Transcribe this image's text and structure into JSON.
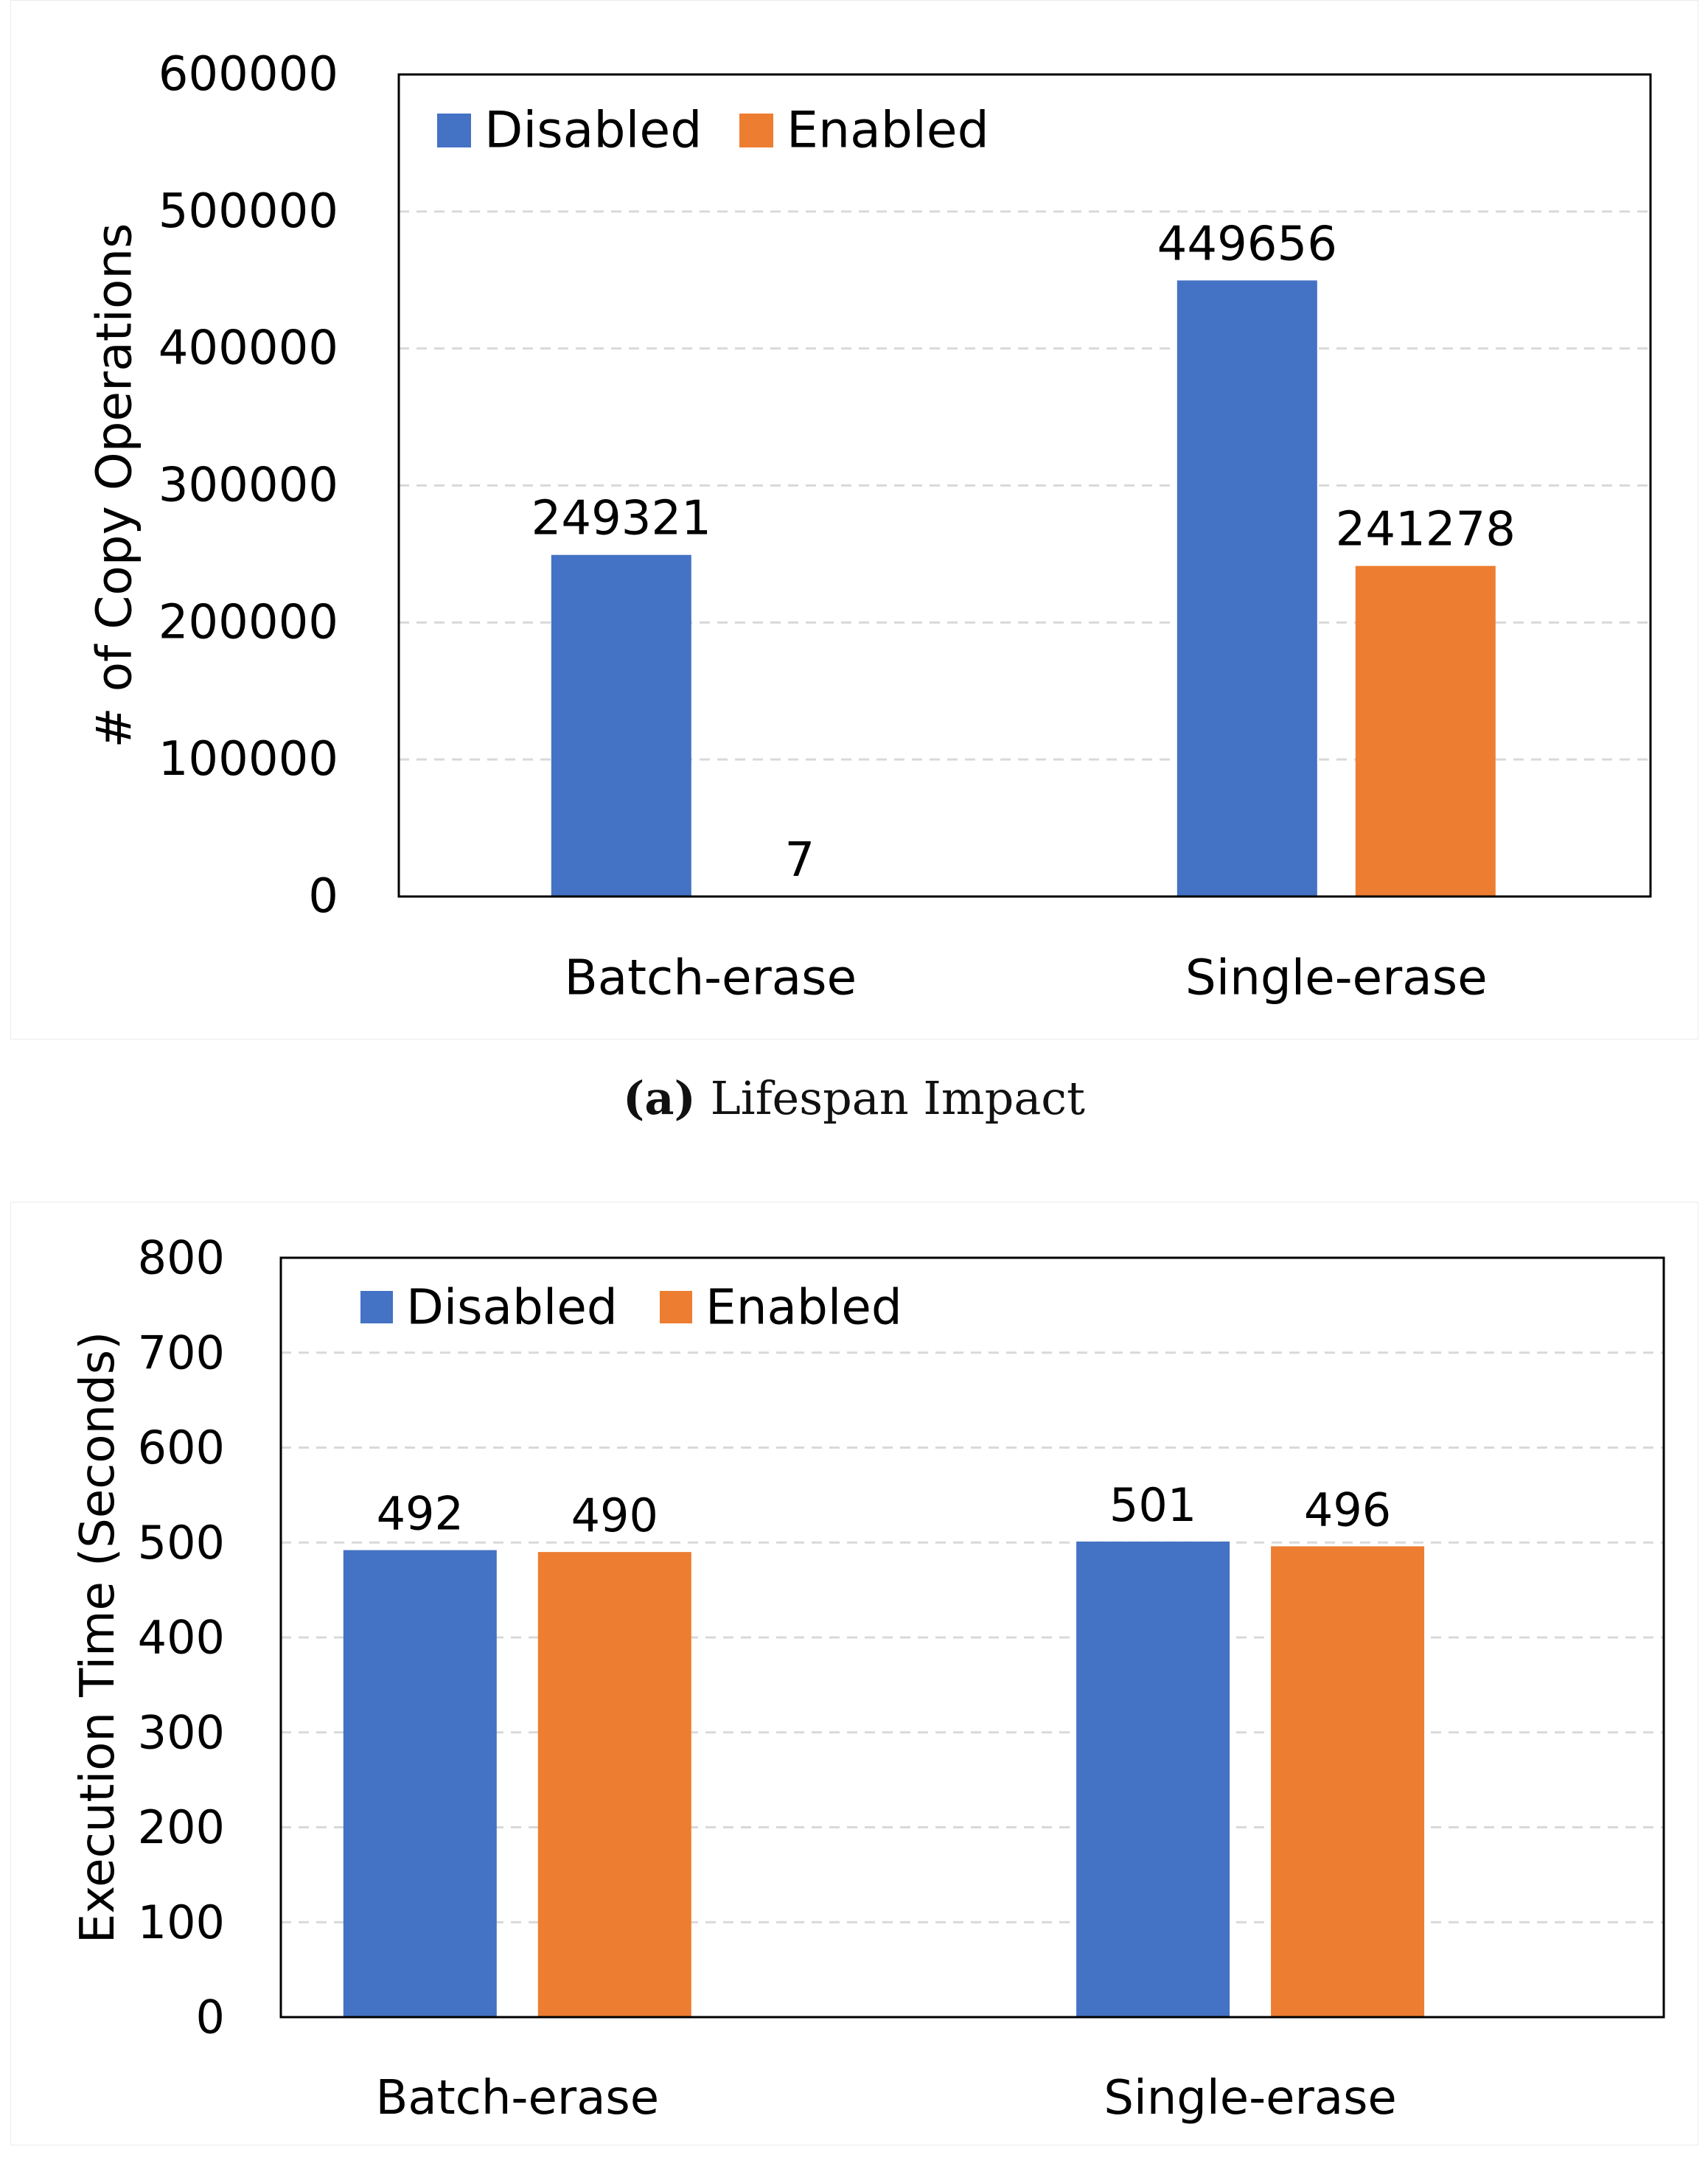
{
  "caption_a": {
    "label": "(a)",
    "text": "Lifespan Impact"
  },
  "colors": {
    "disabled": "#4472C4",
    "enabled": "#ED7D31",
    "grid": "#d9d9d9",
    "frame": "#000000"
  },
  "chart_data": [
    {
      "type": "bar",
      "title": "",
      "ylabel": "# of Copy Operations",
      "xlabel": "",
      "categories": [
        "Batch-erase",
        "Single-erase"
      ],
      "series": [
        {
          "name": "Disabled",
          "values": [
            249321,
            449656
          ],
          "labels": [
            "249321",
            "449656"
          ]
        },
        {
          "name": "Enabled",
          "values": [
            7,
            241278
          ],
          "labels": [
            "7",
            "241278"
          ]
        }
      ],
      "ylim": [
        0,
        600000
      ],
      "yticks": [
        0,
        100000,
        200000,
        300000,
        400000,
        500000,
        600000
      ],
      "ytick_labels": [
        "0",
        "100000",
        "200000",
        "300000",
        "400000",
        "500000",
        "600000"
      ],
      "grid": true,
      "legend": "top-left"
    },
    {
      "type": "bar",
      "title": "",
      "ylabel": "Execution Time (Seconds)",
      "xlabel": "",
      "categories": [
        "Batch-erase",
        "Single-erase"
      ],
      "series": [
        {
          "name": "Disabled",
          "values": [
            492,
            501
          ],
          "labels": [
            "492",
            "501"
          ]
        },
        {
          "name": "Enabled",
          "values": [
            490,
            496
          ],
          "labels": [
            "490",
            "496"
          ]
        }
      ],
      "ylim": [
        0,
        800
      ],
      "yticks": [
        0,
        100,
        200,
        300,
        400,
        500,
        600,
        700,
        800
      ],
      "ytick_labels": [
        "0",
        "100",
        "200",
        "300",
        "400",
        "500",
        "600",
        "700",
        "800"
      ],
      "grid": true,
      "legend": "top-left"
    }
  ]
}
